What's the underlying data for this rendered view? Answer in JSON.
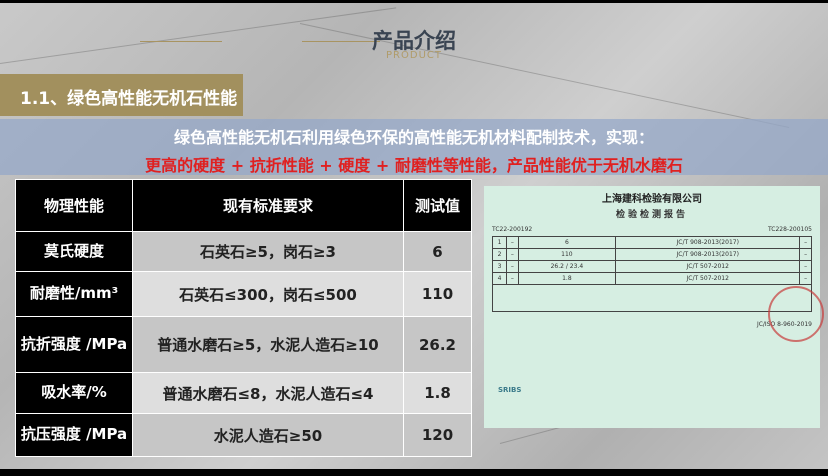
{
  "header": {
    "title": "产品介绍",
    "subtitle": "PRODUCT"
  },
  "section": {
    "title": "1.1、绿色高性能无机石性能"
  },
  "intro": {
    "line1": "绿色高性能无机石利用绿色环保的高性能无机材料配制技术，实现：",
    "line2": "更高的硬度 + 抗折性能 + 硬度 + 耐磨性等性能，产品性能优于无机水磨石"
  },
  "table": {
    "headers": [
      "物理性能",
      "现有标准要求",
      "测试值"
    ],
    "rows": [
      {
        "property": "莫氏硬度",
        "standard": "石英石≥5，岗石≥3",
        "value": "6"
      },
      {
        "property": "耐磨性/mm³",
        "standard": "石英石≤300，岗石≤500",
        "value": "110"
      },
      {
        "property": "抗折强度 /MPa",
        "standard": "普通水磨石≥5，水泥人造石≥10",
        "value": "26.2"
      },
      {
        "property": "吸水率/%",
        "standard": "普通水磨石≤8，水泥人造石≤4",
        "value": "1.8"
      },
      {
        "property": "抗压强度 /MPa",
        "standard": "水泥人造石≥50",
        "value": "120"
      }
    ]
  },
  "certificate": {
    "company": "上海建科检验有限公司",
    "title": "检验检测报告",
    "report_no": "TC228-200105",
    "entrust_no": "TC22-200192",
    "rows": [
      {
        "no": "1",
        "std": "–",
        "result": "6",
        "method": "JC/T 908-2013(2017)",
        "judge": "–"
      },
      {
        "no": "2",
        "std": "–",
        "result": "110",
        "method": "JC/T 908-2013(2017)",
        "judge": "–"
      },
      {
        "no": "3",
        "std": "–",
        "result": "26.2 / 23.4",
        "method": "JC/T 507-2012",
        "judge": "–"
      },
      {
        "no": "4",
        "std": "–",
        "result": "1.8",
        "method": "JC/T 507-2012",
        "judge": "–"
      }
    ],
    "footer": "JC/ISO 8-960-2019",
    "logo": "SRIBS"
  }
}
